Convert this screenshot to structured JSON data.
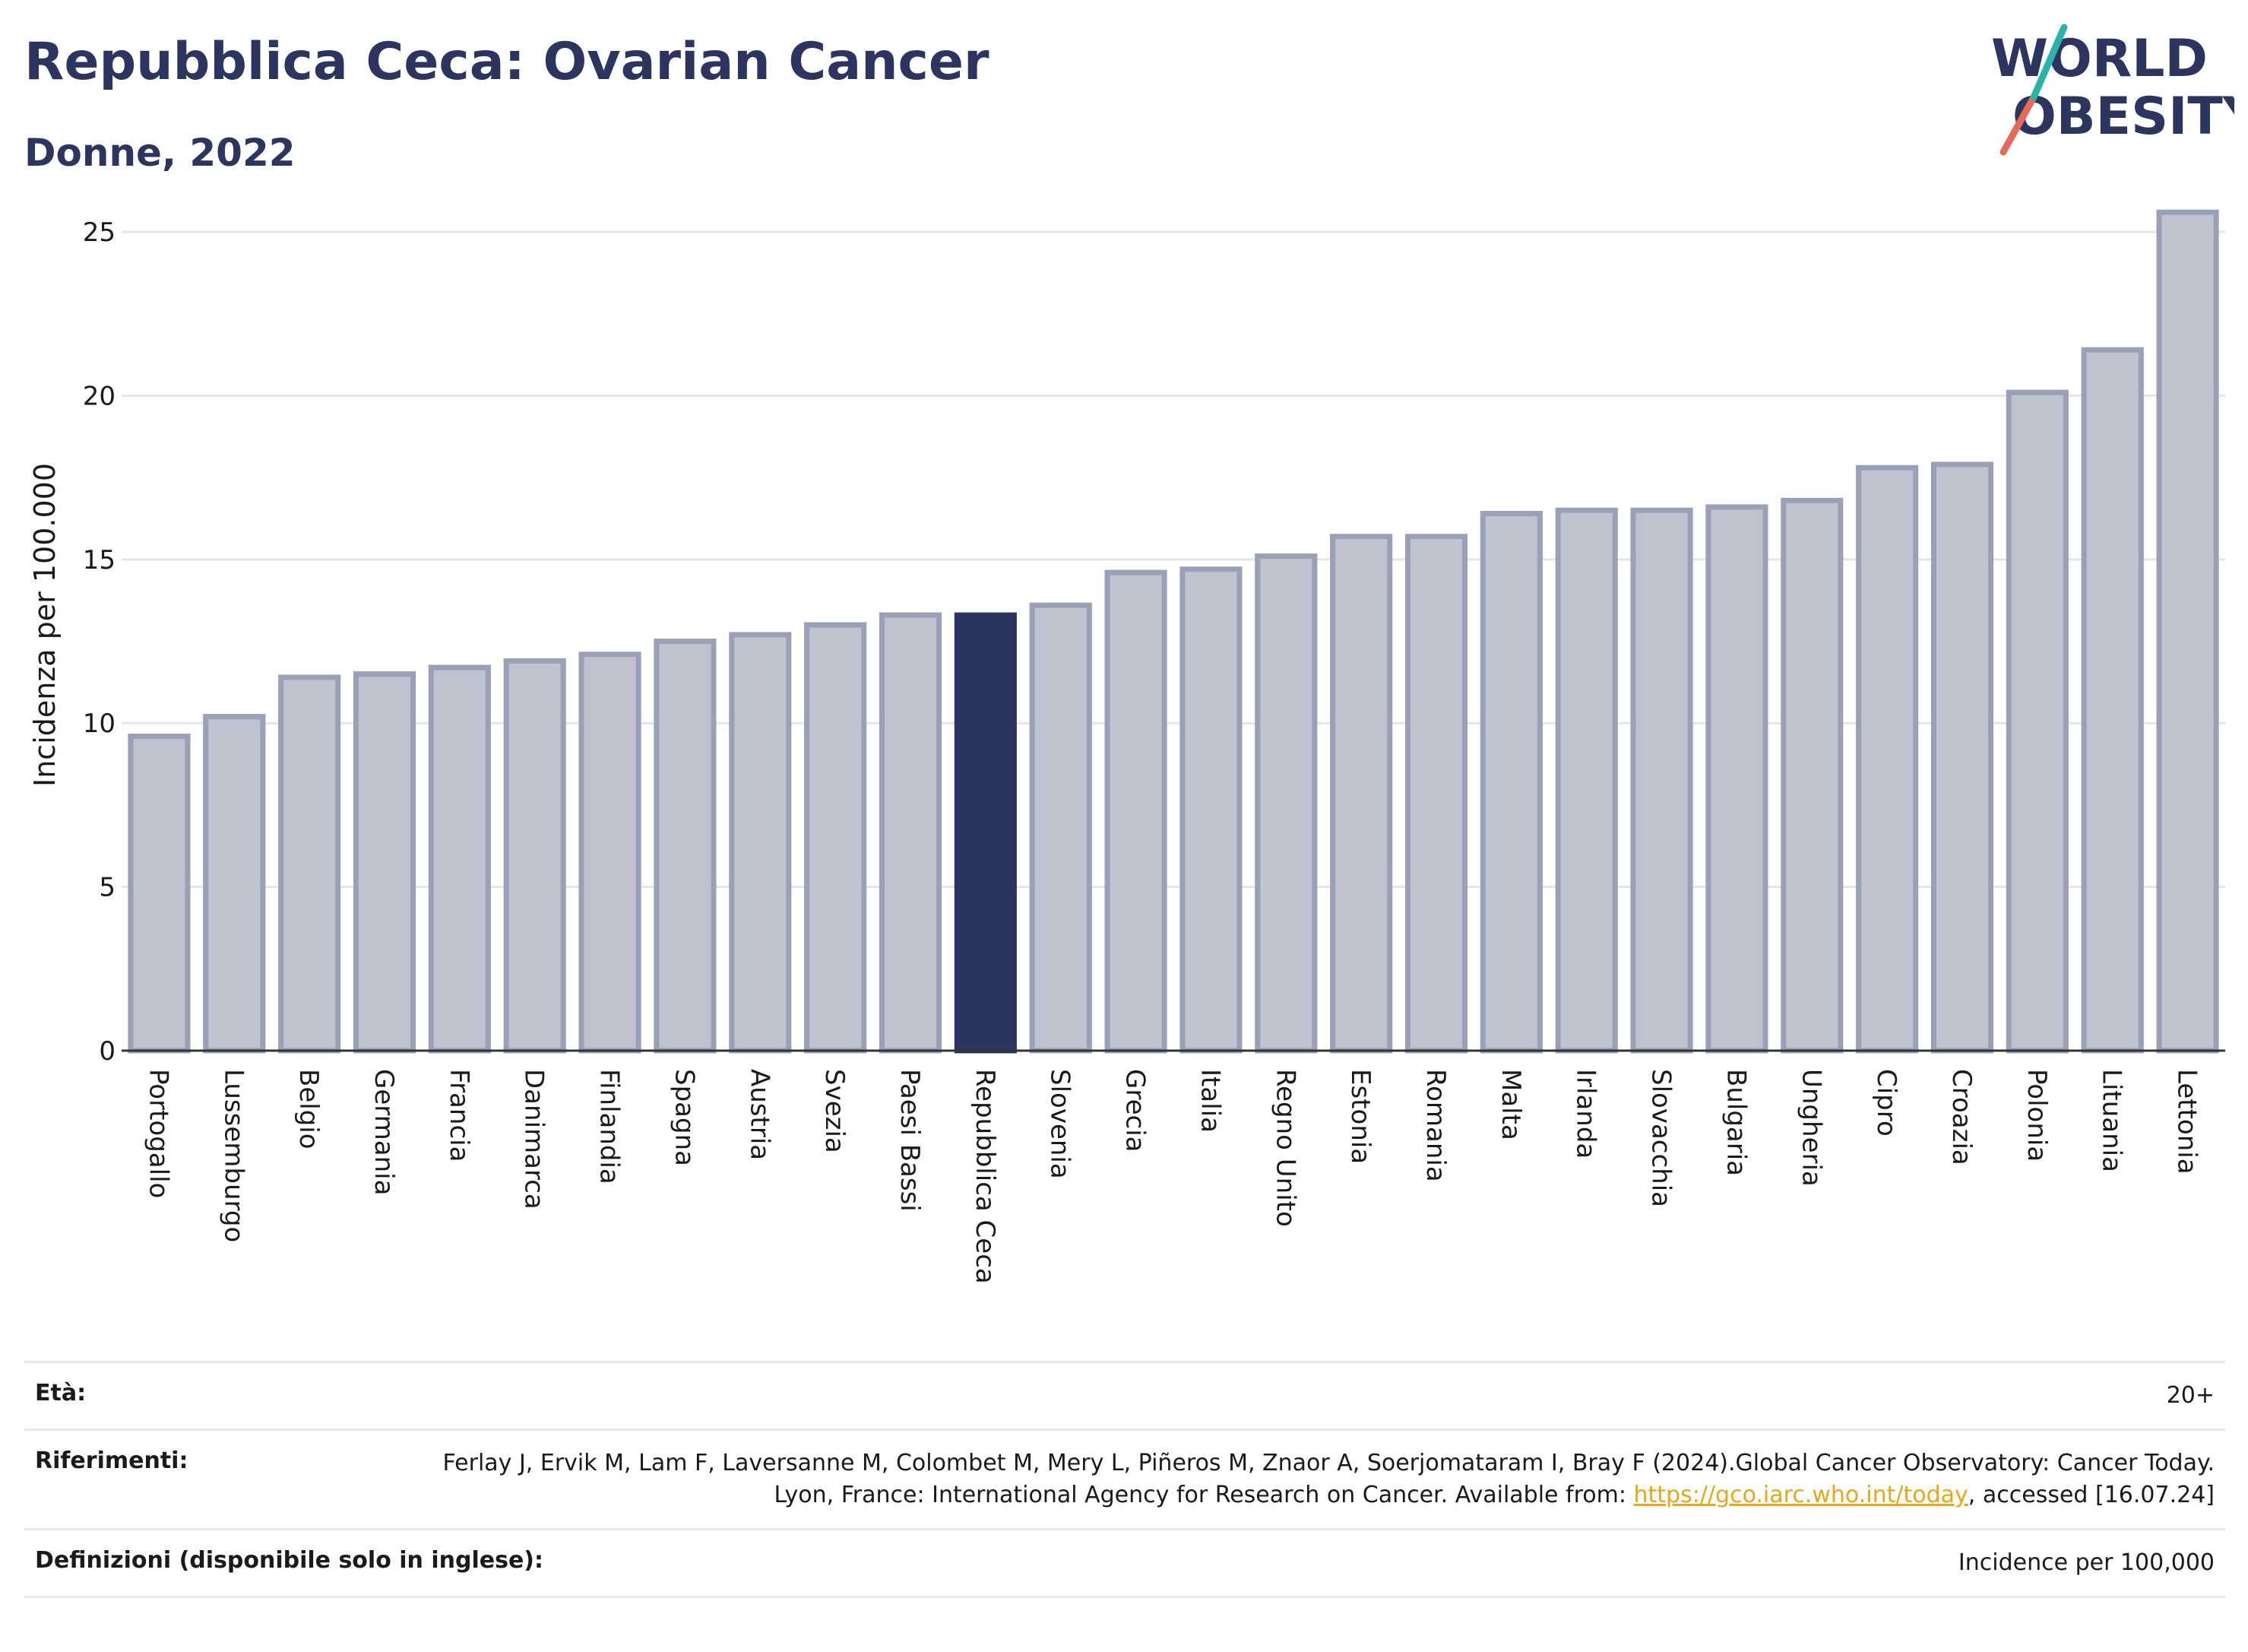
{
  "header": {
    "title": "Repubblica Ceca: Ovarian Cancer",
    "subtitle": "Donne, 2022"
  },
  "logo": {
    "line1": "WORLD",
    "line2": "OBESITY"
  },
  "colors": {
    "highlight": "#2b3560",
    "bar": "#bfc3d0",
    "bar_stroke": "#9aa0b8",
    "title": "#2b3560"
  },
  "chart_data": {
    "type": "bar",
    "ylabel": "Incidenza per 100.000",
    "ylim": [
      0,
      26
    ],
    "yticks": [
      0,
      5,
      10,
      15,
      20,
      25
    ],
    "grid": true,
    "highlight": "Repubblica Ceca",
    "categories": [
      "Portogallo",
      "Lussemburgo",
      "Belgio",
      "Germania",
      "Francia",
      "Danimarca",
      "Finlandia",
      "Spagna",
      "Austria",
      "Svezia",
      "Paesi Bassi",
      "Repubblica Ceca",
      "Slovenia",
      "Grecia",
      "Italia",
      "Regno Unito",
      "Estonia",
      "Romania",
      "Malta",
      "Irlanda",
      "Slovacchia",
      "Bulgaria",
      "Ungheria",
      "Cipro",
      "Croazia",
      "Polonia",
      "Lituania",
      "Lettonia"
    ],
    "values": [
      9.6,
      10.2,
      11.4,
      11.5,
      11.7,
      11.9,
      12.1,
      12.5,
      12.7,
      13.0,
      13.3,
      13.3,
      13.6,
      14.6,
      14.7,
      15.1,
      15.7,
      15.7,
      16.4,
      16.5,
      16.5,
      16.6,
      16.8,
      17.8,
      17.9,
      20.1,
      21.4,
      25.6
    ]
  },
  "footer": {
    "age_label": "Età:",
    "age_value": "20+",
    "ref_label": "Riferimenti:",
    "ref_text_1": "Ferlay J, Ervik M, Lam F, Laversanne M, Colombet M, Mery L, Piñeros M, Znaor A, Soerjomataram I, Bray F (2024).Global Cancer Observatory: Cancer Today. Lyon, France: International Agency for Research on Cancer. Available from: ",
    "ref_link": "https://gco.iarc.who.int/today",
    "ref_text_2": ", accessed [16.07.24]",
    "def_label": "Definizioni (disponibile solo in inglese):",
    "def_value": "Incidence per 100,000"
  }
}
